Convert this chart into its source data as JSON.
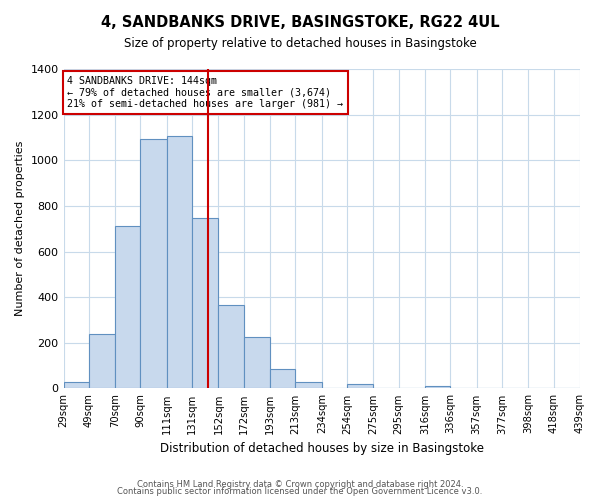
{
  "title": "4, SANDBANKS DRIVE, BASINGSTOKE, RG22 4UL",
  "subtitle": "Size of property relative to detached houses in Basingstoke",
  "xlabel": "Distribution of detached houses by size in Basingstoke",
  "ylabel": "Number of detached properties",
  "bin_edges": [
    29,
    49,
    70,
    90,
    111,
    131,
    152,
    172,
    193,
    213,
    234,
    254,
    275,
    295,
    316,
    336,
    357,
    377,
    398,
    418,
    439
  ],
  "bar_heights": [
    30,
    240,
    710,
    1095,
    1105,
    745,
    365,
    225,
    85,
    30,
    0,
    20,
    0,
    0,
    10,
    0,
    0,
    0,
    0,
    0
  ],
  "bar_color": "#c8d9ed",
  "bar_edge_color": "#6090c0",
  "marker_value": 144,
  "marker_label_line1": "4 SANDBANKS DRIVE: 144sqm",
  "marker_label_line2": "← 79% of detached houses are smaller (3,674)",
  "marker_label_line3": "21% of semi-detached houses are larger (981) →",
  "marker_color": "#cc0000",
  "box_edge_color": "#cc0000",
  "footer_line1": "Contains HM Land Registry data © Crown copyright and database right 2024.",
  "footer_line2": "Contains public sector information licensed under the Open Government Licence v3.0.",
  "ylim": [
    0,
    1400
  ],
  "background_color": "#ffffff",
  "grid_color": "#c8daea"
}
